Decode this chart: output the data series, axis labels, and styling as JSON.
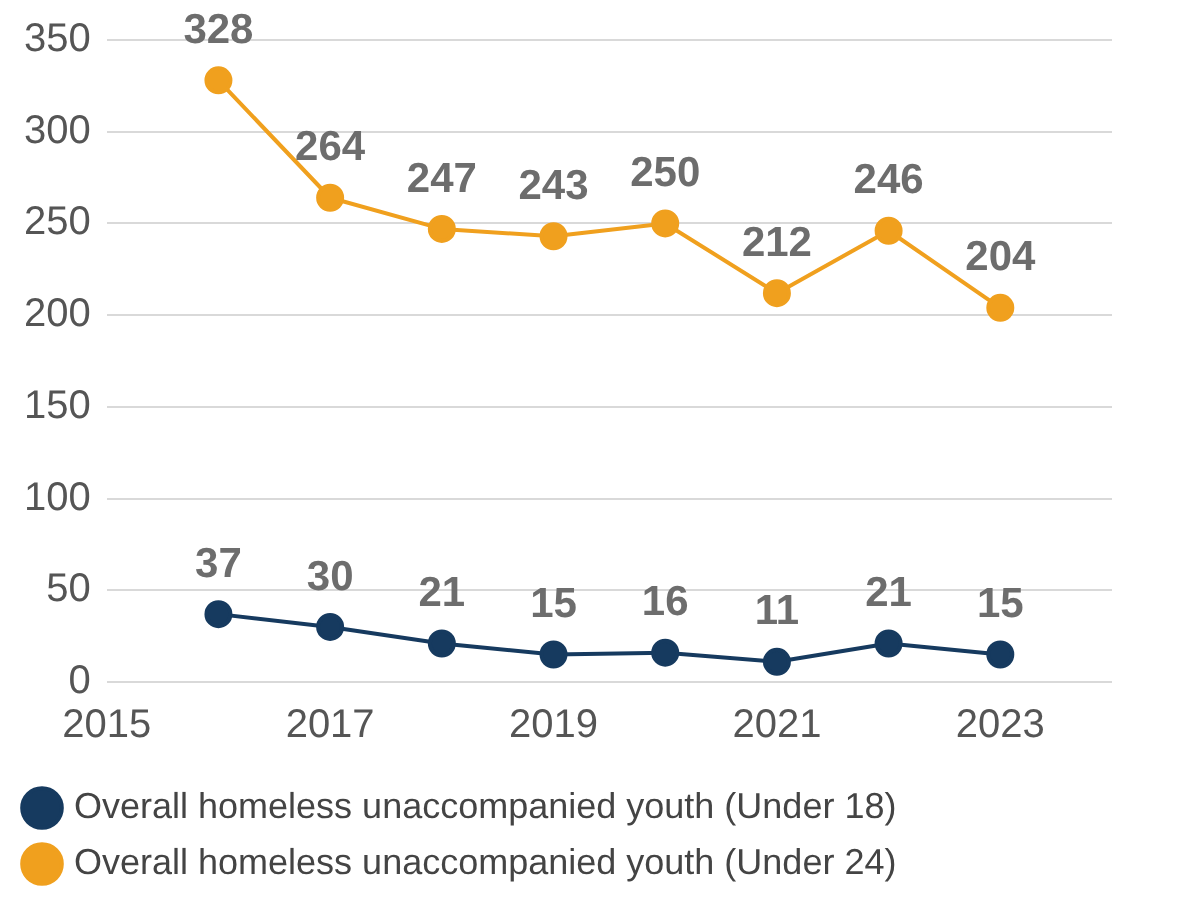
{
  "chart_data": {
    "type": "line",
    "x": [
      2016,
      2017,
      2018,
      2019,
      2020,
      2021,
      2022,
      2023
    ],
    "series": [
      {
        "name": "Overall homeless unaccompanied youth (Under 18)",
        "color": "#163a5f",
        "values": [
          37,
          30,
          21,
          15,
          16,
          11,
          21,
          15
        ]
      },
      {
        "name": "Overall homeless unaccompanied youth (Under 24)",
        "color": "#f0a01e",
        "values": [
          328,
          264,
          247,
          243,
          250,
          212,
          246,
          204
        ]
      }
    ],
    "xlim": [
      2015,
      2024
    ],
    "xticks": [
      2015,
      2017,
      2019,
      2021,
      2023
    ],
    "ylim": [
      0,
      350
    ],
    "yticks": [
      0,
      50,
      100,
      150,
      200,
      250,
      300,
      350
    ],
    "grid": "y",
    "legend": "bottom",
    "marker": "circle",
    "data_labels": true
  }
}
